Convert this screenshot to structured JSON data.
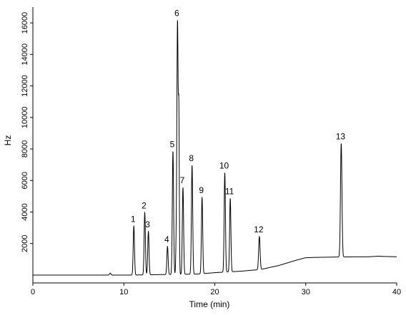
{
  "chart_data": {
    "type": "line",
    "xlabel": "Time (min)",
    "ylabel": "Hz",
    "xlim": [
      0,
      40
    ],
    "ylim": [
      -500,
      17000
    ],
    "x_ticks": [
      0,
      10,
      20,
      30,
      40
    ],
    "y_ticks": [
      2000,
      4000,
      6000,
      8000,
      10000,
      12000,
      14000,
      16000
    ],
    "grid": false,
    "baseline": [
      [
        0,
        0
      ],
      [
        8.3,
        0
      ],
      [
        8.5,
        120
      ],
      [
        8.7,
        0
      ],
      [
        11,
        0
      ],
      [
        14,
        30
      ],
      [
        18,
        60
      ],
      [
        20,
        150
      ],
      [
        23,
        250
      ],
      [
        25,
        350
      ],
      [
        27,
        600
      ],
      [
        29,
        950
      ],
      [
        30,
        1100
      ],
      [
        31,
        1120
      ],
      [
        34,
        1150
      ],
      [
        37,
        1160
      ],
      [
        38,
        1200
      ],
      [
        38.5,
        1180
      ],
      [
        40,
        1160
      ]
    ],
    "peaks": [
      {
        "label": "1",
        "time": 11.1,
        "height": 3100,
        "width": 0.07
      },
      {
        "label": "2",
        "time": 12.3,
        "height": 3950,
        "width": 0.07
      },
      {
        "label": "3",
        "time": 12.7,
        "height": 2750,
        "width": 0.07
      },
      {
        "label": "4",
        "time": 14.8,
        "height": 1780,
        "width": 0.07
      },
      {
        "label": "5",
        "time": 15.4,
        "height": 7800,
        "width": 0.07
      },
      {
        "label": "6",
        "time": 15.9,
        "height": 16000,
        "width": 0.07
      },
      {
        "label": "7",
        "time": 16.5,
        "height": 5500,
        "width": 0.07
      },
      {
        "label": "8",
        "time": 17.5,
        "height": 6900,
        "width": 0.07
      },
      {
        "label": "9",
        "time": 18.6,
        "height": 4850,
        "width": 0.07
      },
      {
        "label": "10",
        "time": 21.1,
        "height": 6300,
        "width": 0.07
      },
      {
        "label": "11",
        "time": 21.7,
        "height": 4650,
        "width": 0.07
      },
      {
        "label": "12",
        "time": 24.9,
        "height": 2100,
        "width": 0.08
      },
      {
        "label": "13",
        "time": 33.9,
        "height": 7200,
        "width": 0.08
      }
    ],
    "minor_peaks": [
      {
        "time": 15.75,
        "height": 1500,
        "width": 0.05
      },
      {
        "time": 16.05,
        "height": 9300,
        "width": 0.05
      }
    ]
  }
}
